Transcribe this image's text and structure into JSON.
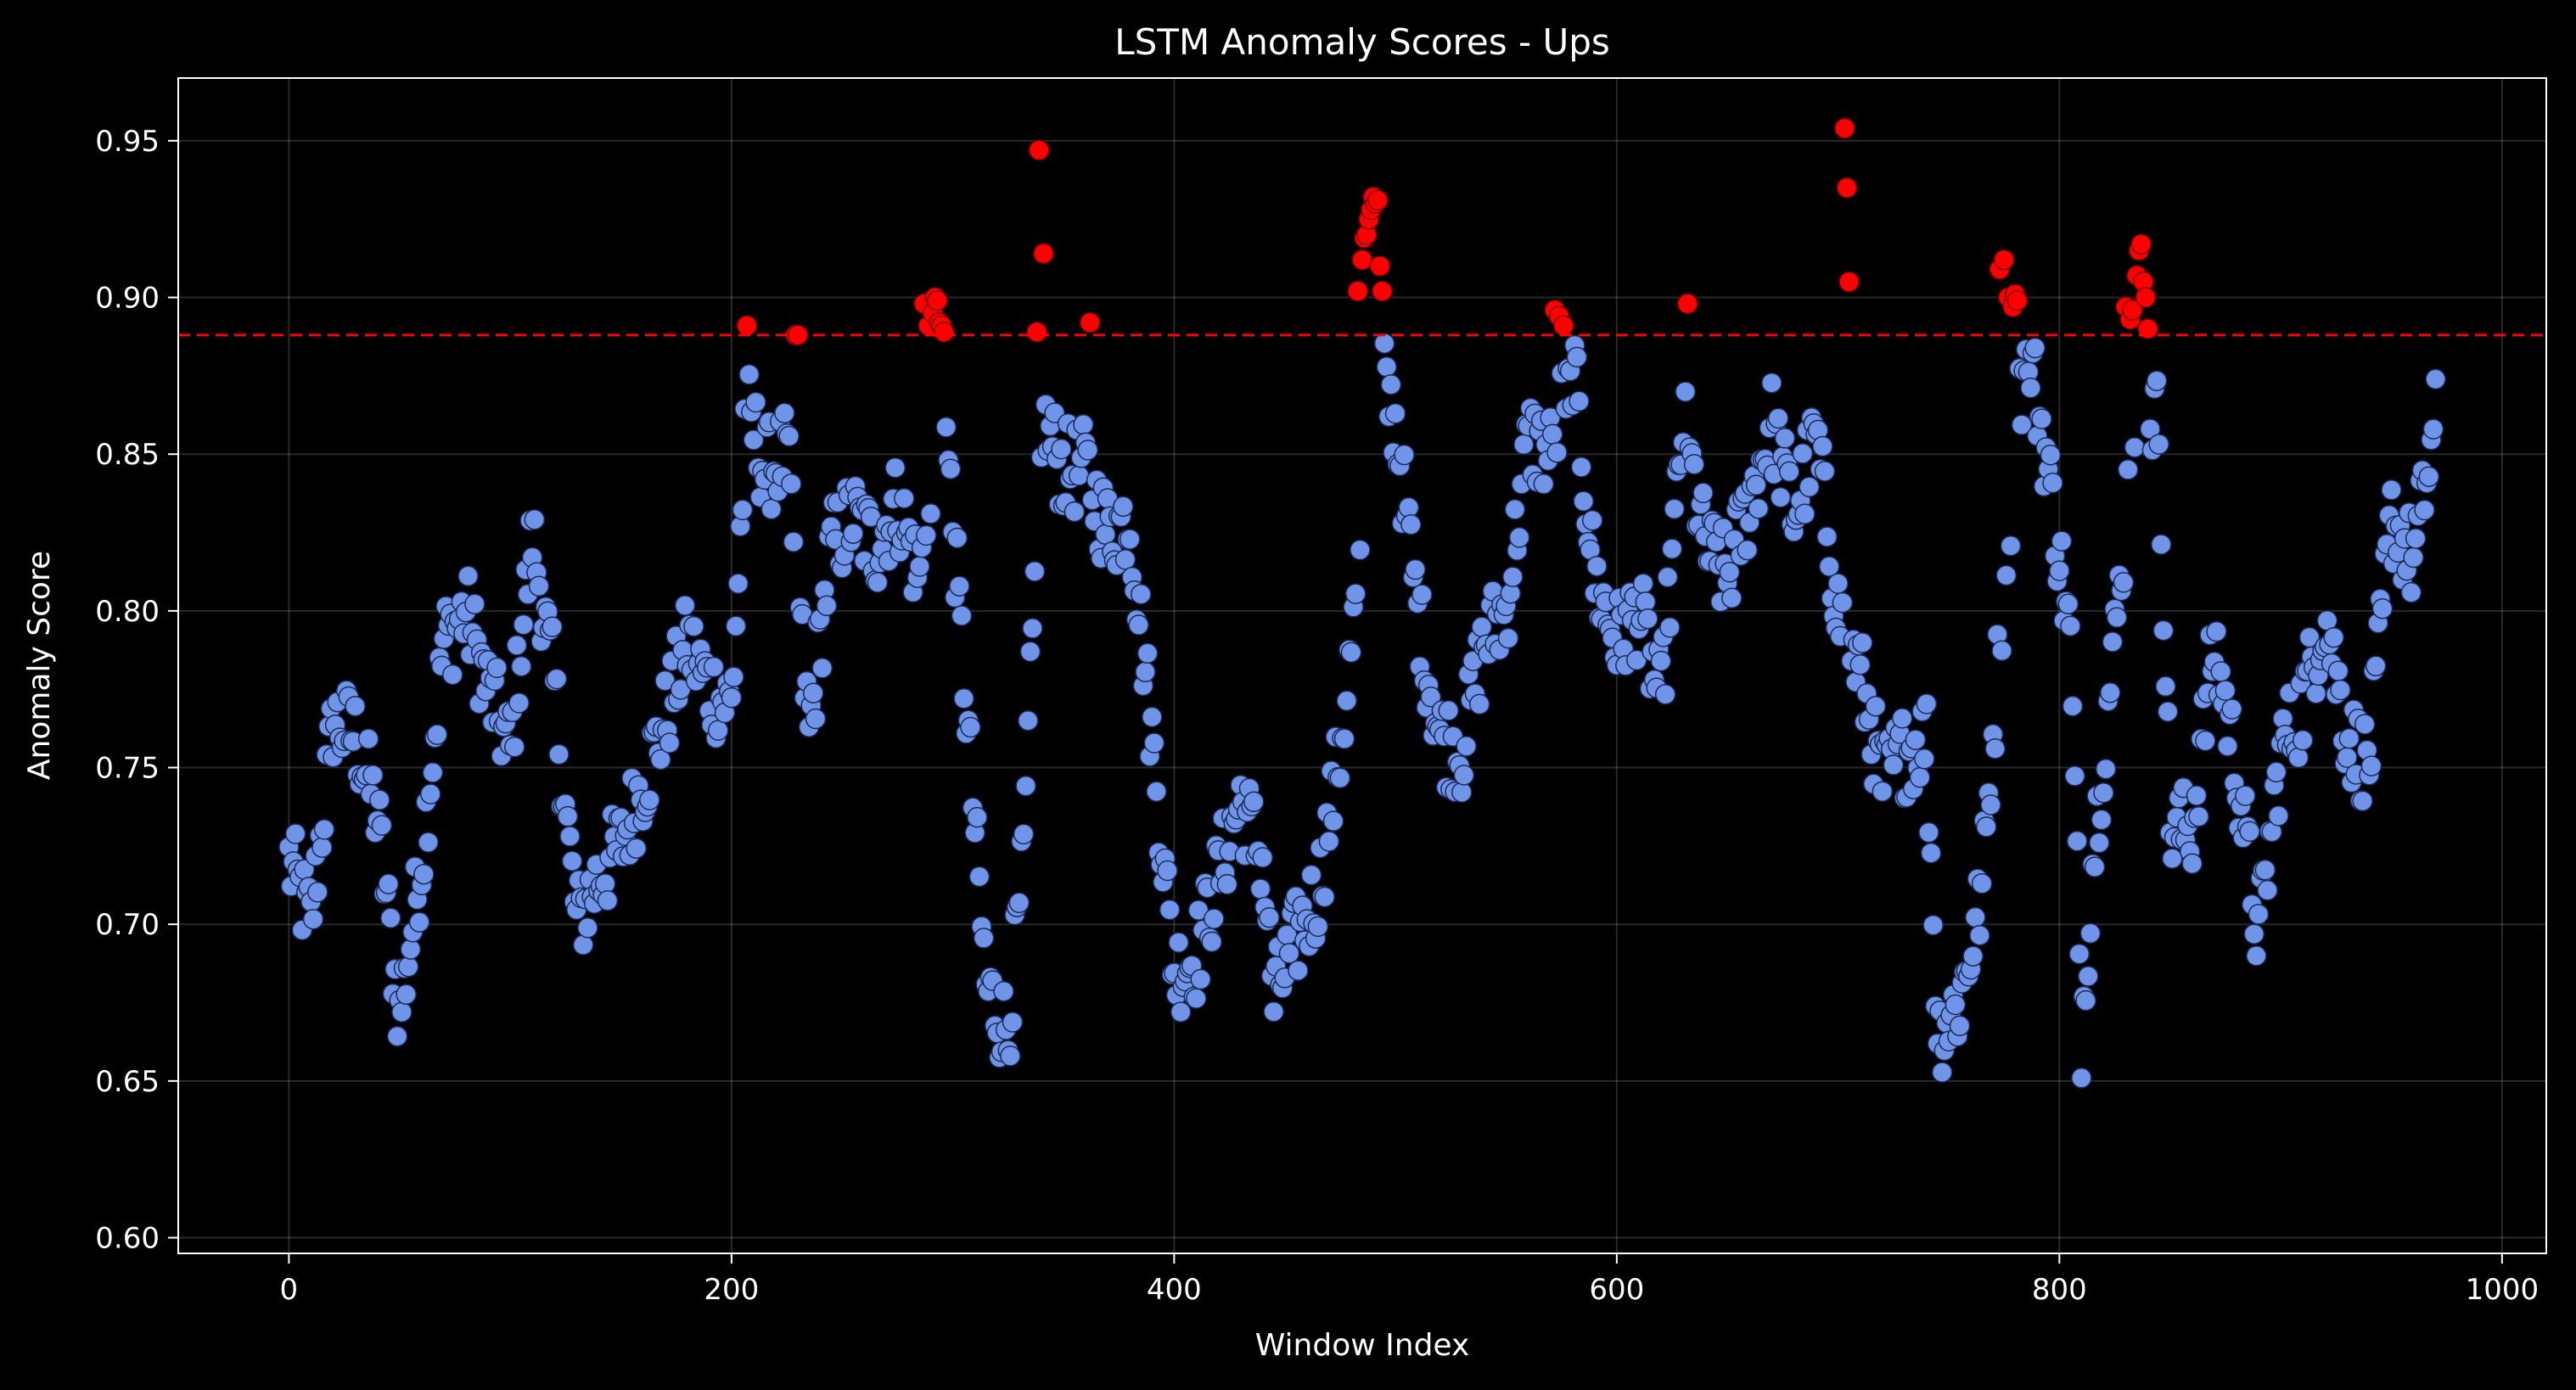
{
  "chart_data": {
    "type": "scatter",
    "title": "LSTM Anomaly Scores - Ups",
    "xlabel": "Window Index",
    "ylabel": "Anomaly Score",
    "xlim": [
      -50,
      1020
    ],
    "ylim": [
      0.595,
      0.97
    ],
    "xticks": [
      0,
      200,
      400,
      600,
      800,
      1000
    ],
    "yticks": [
      0.6,
      0.65,
      0.7,
      0.75,
      0.8,
      0.85,
      0.9,
      0.95
    ],
    "grid": true,
    "threshold": 0.888,
    "colors": {
      "normal": "#6f94e8",
      "anomaly": "#ff0000",
      "threshold": "#ff0000",
      "background": "#000000",
      "text": "#ffffff"
    },
    "trend_anchors": [
      [
        0,
        0.72
      ],
      [
        10,
        0.7
      ],
      [
        20,
        0.765
      ],
      [
        30,
        0.76
      ],
      [
        40,
        0.735
      ],
      [
        50,
        0.67
      ],
      [
        60,
        0.72
      ],
      [
        70,
        0.79
      ],
      [
        80,
        0.8
      ],
      [
        90,
        0.775
      ],
      [
        100,
        0.755
      ],
      [
        110,
        0.825
      ],
      [
        120,
        0.775
      ],
      [
        130,
        0.7
      ],
      [
        140,
        0.715
      ],
      [
        150,
        0.725
      ],
      [
        160,
        0.745
      ],
      [
        170,
        0.765
      ],
      [
        180,
        0.79
      ],
      [
        190,
        0.775
      ],
      [
        200,
        0.77
      ],
      [
        207,
        0.865
      ],
      [
        215,
        0.845
      ],
      [
        225,
        0.85
      ],
      [
        235,
        0.76
      ],
      [
        245,
        0.82
      ],
      [
        255,
        0.83
      ],
      [
        265,
        0.82
      ],
      [
        275,
        0.835
      ],
      [
        285,
        0.81
      ],
      [
        295,
        0.875
      ],
      [
        305,
        0.78
      ],
      [
        315,
        0.68
      ],
      [
        325,
        0.665
      ],
      [
        332,
        0.72
      ],
      [
        340,
        0.86
      ],
      [
        350,
        0.845
      ],
      [
        360,
        0.845
      ],
      [
        370,
        0.825
      ],
      [
        380,
        0.83
      ],
      [
        390,
        0.76
      ],
      [
        400,
        0.685
      ],
      [
        410,
        0.69
      ],
      [
        420,
        0.715
      ],
      [
        430,
        0.74
      ],
      [
        440,
        0.72
      ],
      [
        445,
        0.675
      ],
      [
        455,
        0.695
      ],
      [
        465,
        0.71
      ],
      [
        475,
        0.755
      ],
      [
        485,
        0.82
      ],
      [
        492,
        0.88
      ],
      [
        500,
        0.86
      ],
      [
        510,
        0.8
      ],
      [
        520,
        0.76
      ],
      [
        530,
        0.755
      ],
      [
        540,
        0.79
      ],
      [
        550,
        0.8
      ],
      [
        560,
        0.855
      ],
      [
        570,
        0.85
      ],
      [
        580,
        0.88
      ],
      [
        590,
        0.81
      ],
      [
        600,
        0.79
      ],
      [
        610,
        0.8
      ],
      [
        620,
        0.77
      ],
      [
        630,
        0.86
      ],
      [
        640,
        0.82
      ],
      [
        650,
        0.81
      ],
      [
        660,
        0.835
      ],
      [
        670,
        0.86
      ],
      [
        680,
        0.83
      ],
      [
        690,
        0.855
      ],
      [
        700,
        0.8
      ],
      [
        710,
        0.78
      ],
      [
        720,
        0.745
      ],
      [
        730,
        0.755
      ],
      [
        740,
        0.76
      ],
      [
        745,
        0.665
      ],
      [
        755,
        0.675
      ],
      [
        765,
        0.71
      ],
      [
        775,
        0.81
      ],
      [
        785,
        0.89
      ],
      [
        795,
        0.845
      ],
      [
        805,
        0.79
      ],
      [
        810,
        0.665
      ],
      [
        815,
        0.72
      ],
      [
        825,
        0.79
      ],
      [
        835,
        0.87
      ],
      [
        845,
        0.86
      ],
      [
        850,
        0.73
      ],
      [
        860,
        0.73
      ],
      [
        870,
        0.79
      ],
      [
        880,
        0.75
      ],
      [
        890,
        0.695
      ],
      [
        900,
        0.755
      ],
      [
        910,
        0.77
      ],
      [
        920,
        0.8
      ],
      [
        930,
        0.76
      ],
      [
        940,
        0.75
      ],
      [
        950,
        0.83
      ],
      [
        960,
        0.815
      ],
      [
        970,
        0.86
      ]
    ],
    "anomalies": [
      [
        207,
        0.891
      ],
      [
        229,
        0.888
      ],
      [
        230,
        0.888
      ],
      [
        287,
        0.898
      ],
      [
        289,
        0.891
      ],
      [
        291,
        0.895
      ],
      [
        292,
        0.9
      ],
      [
        293,
        0.899
      ],
      [
        294,
        0.892
      ],
      [
        295,
        0.891
      ],
      [
        296,
        0.889
      ],
      [
        338,
        0.889
      ],
      [
        339,
        0.947
      ],
      [
        341,
        0.914
      ],
      [
        362,
        0.892
      ],
      [
        483,
        0.902
      ],
      [
        485,
        0.912
      ],
      [
        486,
        0.919
      ],
      [
        487,
        0.92
      ],
      [
        488,
        0.925
      ],
      [
        489,
        0.928
      ],
      [
        490,
        0.932
      ],
      [
        491,
        0.93
      ],
      [
        492,
        0.931
      ],
      [
        493,
        0.91
      ],
      [
        494,
        0.902
      ],
      [
        572,
        0.896
      ],
      [
        574,
        0.894
      ],
      [
        576,
        0.891
      ],
      [
        632,
        0.898
      ],
      [
        703,
        0.954
      ],
      [
        704,
        0.935
      ],
      [
        705,
        0.905
      ],
      [
        773,
        0.909
      ],
      [
        775,
        0.912
      ],
      [
        777,
        0.9
      ],
      [
        779,
        0.897
      ],
      [
        780,
        0.901
      ],
      [
        781,
        0.899
      ],
      [
        830,
        0.897
      ],
      [
        832,
        0.893
      ],
      [
        833,
        0.896
      ],
      [
        835,
        0.907
      ],
      [
        836,
        0.915
      ],
      [
        837,
        0.917
      ],
      [
        838,
        0.905
      ],
      [
        839,
        0.9
      ],
      [
        840,
        0.89
      ]
    ]
  }
}
